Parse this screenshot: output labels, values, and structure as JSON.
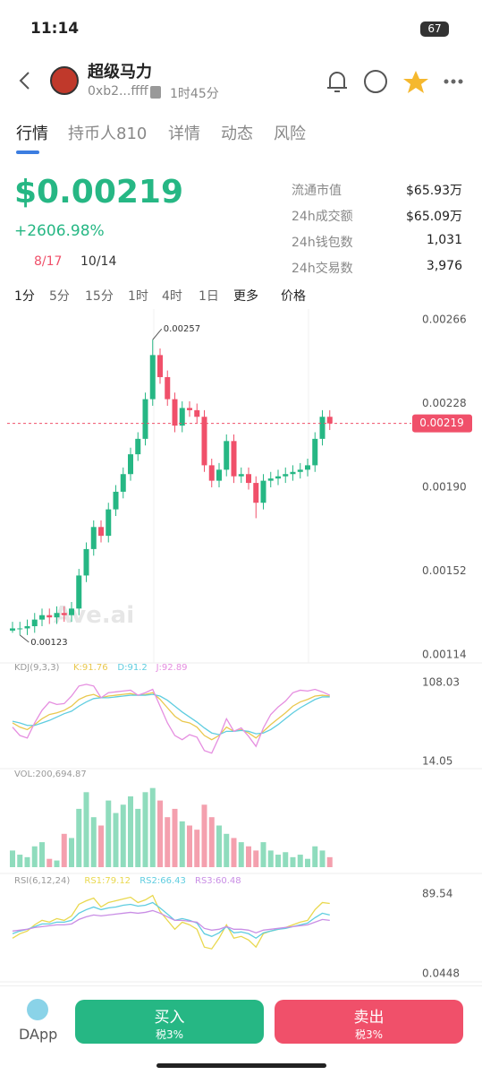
{
  "status": {
    "time": "11:14",
    "battery": "67"
  },
  "header": {
    "title": "超级马力",
    "address": "0xb2...ffff",
    "age": "1时45分"
  },
  "tabs": [
    "行情",
    "持币人810",
    "详情",
    "动态",
    "风险"
  ],
  "price": {
    "value": "$0.00219",
    "change": "+2606.98%",
    "holders_ratio": "8/17",
    "top_ratio": "10/14"
  },
  "stats": [
    {
      "label": "流通市值",
      "value": "$65.93万"
    },
    {
      "label": "24h成交额",
      "value": "$65.09万"
    },
    {
      "label": "24h钱包数",
      "value": "1,031"
    },
    {
      "label": "24h交易数",
      "value": "3,976"
    }
  ],
  "intervals": [
    "1分",
    "5分",
    "15分",
    "1时",
    "4时",
    "1日",
    "更多",
    "价格"
  ],
  "watermark": "Ave.ai",
  "chart_data": [
    {
      "type": "candlestick",
      "up_color": "#26b784",
      "down_color": "#f0506a",
      "open": [
        0.00125,
        0.00126,
        0.00126,
        0.00127,
        0.0013,
        0.00132,
        0.00131,
        0.00133,
        0.00132,
        0.00135,
        0.0015,
        0.00162,
        0.00172,
        0.00168,
        0.0018,
        0.00188,
        0.00196,
        0.00205,
        0.00212,
        0.0023,
        0.0025,
        0.0024,
        0.0023,
        0.00218,
        0.00226,
        0.00225,
        0.00222,
        0.002,
        0.00193,
        0.00198,
        0.00211,
        0.00195,
        0.00196,
        0.00192,
        0.00183,
        0.00193,
        0.00194,
        0.00195,
        0.00196,
        0.00197,
        0.00198,
        0.002,
        0.00212,
        0.00222
      ],
      "high": [
        0.00129,
        0.00129,
        0.0013,
        0.00133,
        0.00135,
        0.00135,
        0.00136,
        0.00136,
        0.00138,
        0.00153,
        0.00165,
        0.00175,
        0.00175,
        0.00183,
        0.00191,
        0.00199,
        0.00208,
        0.00215,
        0.00233,
        0.00257,
        0.00253,
        0.00243,
        0.00233,
        0.00229,
        0.00229,
        0.00228,
        0.00225,
        0.00203,
        0.00201,
        0.00214,
        0.00214,
        0.00199,
        0.00199,
        0.00195,
        0.00196,
        0.00197,
        0.00198,
        0.00199,
        0.002,
        0.00201,
        0.00203,
        0.00215,
        0.00225,
        0.00225
      ],
      "low": [
        0.00124,
        0.00123,
        0.00123,
        0.00124,
        0.00127,
        0.00128,
        0.00128,
        0.00129,
        0.00129,
        0.00132,
        0.00147,
        0.00159,
        0.00165,
        0.00165,
        0.00177,
        0.00185,
        0.00193,
        0.00202,
        0.00209,
        0.00227,
        0.00237,
        0.00227,
        0.00215,
        0.00215,
        0.00222,
        0.00219,
        0.00197,
        0.0019,
        0.0019,
        0.00195,
        0.00192,
        0.00192,
        0.00189,
        0.00176,
        0.0018,
        0.0019,
        0.00191,
        0.00192,
        0.00193,
        0.00194,
        0.00195,
        0.00197,
        0.00209,
        0.00216
      ],
      "close": [
        0.00126,
        0.00126,
        0.00127,
        0.0013,
        0.00132,
        0.00131,
        0.00133,
        0.00132,
        0.00135,
        0.0015,
        0.00162,
        0.00172,
        0.00168,
        0.0018,
        0.00188,
        0.00196,
        0.00205,
        0.00212,
        0.0023,
        0.0025,
        0.0024,
        0.0023,
        0.00218,
        0.00226,
        0.00225,
        0.00222,
        0.002,
        0.00193,
        0.00198,
        0.00211,
        0.00195,
        0.00196,
        0.00192,
        0.00183,
        0.00193,
        0.00194,
        0.00195,
        0.00196,
        0.00197,
        0.00198,
        0.002,
        0.00212,
        0.00222,
        0.00219
      ],
      "ylim": [
        0.00114,
        0.00266
      ],
      "yticks": [
        0.00266,
        0.00228,
        {
          "value": 0.0019,
          "label": "0.00190"
        },
        0.00152,
        0.00114
      ],
      "current": 0.00219
    },
    {
      "type": "line",
      "title": "KDJ(9,3,3)",
      "ylim": [
        14.05,
        108.03
      ],
      "yticks": [
        108.03,
        14.05
      ],
      "series": [
        {
          "name": "K:91.76",
          "color": "#e9c84e",
          "values": [
            60,
            55,
            52,
            58,
            65,
            70,
            72,
            75,
            80,
            88,
            92,
            94,
            90,
            92,
            93,
            94,
            95,
            93,
            94,
            96,
            88,
            78,
            68,
            62,
            60,
            55,
            45,
            40,
            45,
            55,
            50,
            52,
            48,
            42,
            50,
            58,
            65,
            72,
            80,
            85,
            88,
            92,
            93,
            92
          ]
        },
        {
          "name": "D:91.2",
          "color": "#5fcde0",
          "values": [
            62,
            60,
            57,
            57,
            60,
            63,
            67,
            71,
            74,
            80,
            85,
            89,
            90,
            90,
            91,
            92,
            93,
            93,
            93,
            94,
            92,
            87,
            80,
            73,
            67,
            61,
            54,
            48,
            46,
            50,
            50,
            51,
            50,
            47,
            48,
            52,
            58,
            65,
            72,
            78,
            83,
            88,
            91,
            91
          ]
        },
        {
          "name": "J:92.89",
          "color": "#e58ee0",
          "values": [
            55,
            45,
            42,
            60,
            75,
            85,
            82,
            83,
            92,
            104,
            106,
            104,
            90,
            96,
            97,
            98,
            99,
            93,
            96,
            100,
            80,
            60,
            45,
            40,
            46,
            43,
            27,
            24,
            43,
            65,
            50,
            54,
            44,
            32,
            54,
            70,
            79,
            86,
            96,
            99,
            98,
            100,
            97,
            93
          ]
        }
      ]
    },
    {
      "type": "bar",
      "title": "VOL:200,694.87",
      "up_color": "#8fdcbd",
      "down_color": "#f4a0ae",
      "ylim": [
        0,
        100
      ],
      "values": [
        20,
        15,
        12,
        25,
        30,
        10,
        8,
        40,
        35,
        70,
        90,
        60,
        50,
        80,
        65,
        75,
        85,
        70,
        90,
        95,
        80,
        60,
        70,
        55,
        50,
        45,
        75,
        60,
        50,
        40,
        35,
        30,
        25,
        20,
        30,
        20,
        15,
        18,
        12,
        15,
        10,
        25,
        20,
        12
      ]
    },
    {
      "type": "line",
      "title": "RSI(6,12,24)",
      "ylim": [
        0.0448,
        89.54
      ],
      "yticks": [
        89.54,
        0.0448
      ],
      "series": [
        {
          "name": "RS1:79.12",
          "color": "#e9d84e",
          "values": [
            40,
            45,
            48,
            55,
            60,
            58,
            62,
            60,
            65,
            78,
            82,
            85,
            75,
            80,
            82,
            84,
            86,
            80,
            83,
            88,
            70,
            60,
            50,
            58,
            55,
            50,
            30,
            28,
            40,
            55,
            40,
            42,
            38,
            30,
            45,
            48,
            50,
            52,
            55,
            58,
            60,
            72,
            80,
            79
          ]
        },
        {
          "name": "RS2:66.43",
          "color": "#5fcde0",
          "values": [
            45,
            48,
            50,
            53,
            56,
            56,
            58,
            58,
            60,
            68,
            72,
            75,
            72,
            74,
            75,
            77,
            78,
            76,
            77,
            80,
            74,
            67,
            60,
            62,
            60,
            57,
            45,
            42,
            46,
            53,
            46,
            47,
            45,
            40,
            46,
            48,
            50,
            51,
            53,
            55,
            57,
            63,
            68,
            66
          ]
        },
        {
          "name": "RS3:60.48",
          "color": "#c98ee5",
          "values": [
            48,
            49,
            50,
            52,
            53,
            54,
            55,
            55,
            56,
            61,
            64,
            66,
            65,
            66,
            67,
            68,
            69,
            68,
            69,
            71,
            68,
            64,
            60,
            60,
            59,
            58,
            51,
            49,
            50,
            53,
            50,
            50,
            49,
            46,
            49,
            50,
            51,
            52,
            53,
            54,
            55,
            58,
            61,
            60
          ]
        }
      ]
    }
  ],
  "footer": {
    "dapp": "DApp",
    "buy": "买入",
    "buy_tax": "税3%",
    "sell": "卖出",
    "sell_tax": "税3%"
  }
}
